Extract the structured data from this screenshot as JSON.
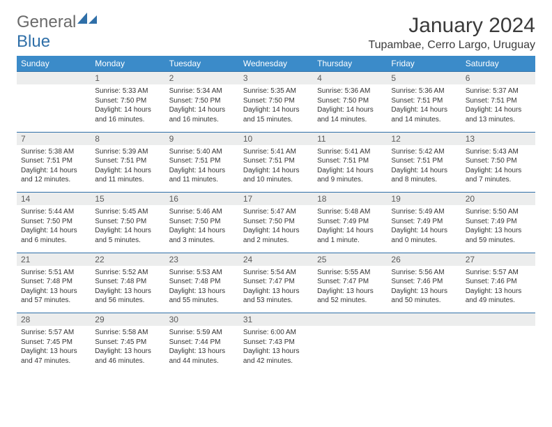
{
  "logo": {
    "text1": "General",
    "text2": "Blue"
  },
  "title": "January 2024",
  "location": "Tupambae, Cerro Largo, Uruguay",
  "colors": {
    "header_bg": "#3b8bc9",
    "header_text": "#ffffff",
    "daynum_bg": "#eceded",
    "rule": "#2f6fa8",
    "logo_gray": "#6a6a6a",
    "logo_blue": "#2f6fa8"
  },
  "weekdays": [
    "Sunday",
    "Monday",
    "Tuesday",
    "Wednesday",
    "Thursday",
    "Friday",
    "Saturday"
  ],
  "weeks": [
    [
      null,
      {
        "n": "1",
        "sr": "Sunrise: 5:33 AM",
        "ss": "Sunset: 7:50 PM",
        "dl": "Daylight: 14 hours and 16 minutes."
      },
      {
        "n": "2",
        "sr": "Sunrise: 5:34 AM",
        "ss": "Sunset: 7:50 PM",
        "dl": "Daylight: 14 hours and 16 minutes."
      },
      {
        "n": "3",
        "sr": "Sunrise: 5:35 AM",
        "ss": "Sunset: 7:50 PM",
        "dl": "Daylight: 14 hours and 15 minutes."
      },
      {
        "n": "4",
        "sr": "Sunrise: 5:36 AM",
        "ss": "Sunset: 7:50 PM",
        "dl": "Daylight: 14 hours and 14 minutes."
      },
      {
        "n": "5",
        "sr": "Sunrise: 5:36 AM",
        "ss": "Sunset: 7:51 PM",
        "dl": "Daylight: 14 hours and 14 minutes."
      },
      {
        "n": "6",
        "sr": "Sunrise: 5:37 AM",
        "ss": "Sunset: 7:51 PM",
        "dl": "Daylight: 14 hours and 13 minutes."
      }
    ],
    [
      {
        "n": "7",
        "sr": "Sunrise: 5:38 AM",
        "ss": "Sunset: 7:51 PM",
        "dl": "Daylight: 14 hours and 12 minutes."
      },
      {
        "n": "8",
        "sr": "Sunrise: 5:39 AM",
        "ss": "Sunset: 7:51 PM",
        "dl": "Daylight: 14 hours and 11 minutes."
      },
      {
        "n": "9",
        "sr": "Sunrise: 5:40 AM",
        "ss": "Sunset: 7:51 PM",
        "dl": "Daylight: 14 hours and 11 minutes."
      },
      {
        "n": "10",
        "sr": "Sunrise: 5:41 AM",
        "ss": "Sunset: 7:51 PM",
        "dl": "Daylight: 14 hours and 10 minutes."
      },
      {
        "n": "11",
        "sr": "Sunrise: 5:41 AM",
        "ss": "Sunset: 7:51 PM",
        "dl": "Daylight: 14 hours and 9 minutes."
      },
      {
        "n": "12",
        "sr": "Sunrise: 5:42 AM",
        "ss": "Sunset: 7:51 PM",
        "dl": "Daylight: 14 hours and 8 minutes."
      },
      {
        "n": "13",
        "sr": "Sunrise: 5:43 AM",
        "ss": "Sunset: 7:50 PM",
        "dl": "Daylight: 14 hours and 7 minutes."
      }
    ],
    [
      {
        "n": "14",
        "sr": "Sunrise: 5:44 AM",
        "ss": "Sunset: 7:50 PM",
        "dl": "Daylight: 14 hours and 6 minutes."
      },
      {
        "n": "15",
        "sr": "Sunrise: 5:45 AM",
        "ss": "Sunset: 7:50 PM",
        "dl": "Daylight: 14 hours and 5 minutes."
      },
      {
        "n": "16",
        "sr": "Sunrise: 5:46 AM",
        "ss": "Sunset: 7:50 PM",
        "dl": "Daylight: 14 hours and 3 minutes."
      },
      {
        "n": "17",
        "sr": "Sunrise: 5:47 AM",
        "ss": "Sunset: 7:50 PM",
        "dl": "Daylight: 14 hours and 2 minutes."
      },
      {
        "n": "18",
        "sr": "Sunrise: 5:48 AM",
        "ss": "Sunset: 7:49 PM",
        "dl": "Daylight: 14 hours and 1 minute."
      },
      {
        "n": "19",
        "sr": "Sunrise: 5:49 AM",
        "ss": "Sunset: 7:49 PM",
        "dl": "Daylight: 14 hours and 0 minutes."
      },
      {
        "n": "20",
        "sr": "Sunrise: 5:50 AM",
        "ss": "Sunset: 7:49 PM",
        "dl": "Daylight: 13 hours and 59 minutes."
      }
    ],
    [
      {
        "n": "21",
        "sr": "Sunrise: 5:51 AM",
        "ss": "Sunset: 7:48 PM",
        "dl": "Daylight: 13 hours and 57 minutes."
      },
      {
        "n": "22",
        "sr": "Sunrise: 5:52 AM",
        "ss": "Sunset: 7:48 PM",
        "dl": "Daylight: 13 hours and 56 minutes."
      },
      {
        "n": "23",
        "sr": "Sunrise: 5:53 AM",
        "ss": "Sunset: 7:48 PM",
        "dl": "Daylight: 13 hours and 55 minutes."
      },
      {
        "n": "24",
        "sr": "Sunrise: 5:54 AM",
        "ss": "Sunset: 7:47 PM",
        "dl": "Daylight: 13 hours and 53 minutes."
      },
      {
        "n": "25",
        "sr": "Sunrise: 5:55 AM",
        "ss": "Sunset: 7:47 PM",
        "dl": "Daylight: 13 hours and 52 minutes."
      },
      {
        "n": "26",
        "sr": "Sunrise: 5:56 AM",
        "ss": "Sunset: 7:46 PM",
        "dl": "Daylight: 13 hours and 50 minutes."
      },
      {
        "n": "27",
        "sr": "Sunrise: 5:57 AM",
        "ss": "Sunset: 7:46 PM",
        "dl": "Daylight: 13 hours and 49 minutes."
      }
    ],
    [
      {
        "n": "28",
        "sr": "Sunrise: 5:57 AM",
        "ss": "Sunset: 7:45 PM",
        "dl": "Daylight: 13 hours and 47 minutes."
      },
      {
        "n": "29",
        "sr": "Sunrise: 5:58 AM",
        "ss": "Sunset: 7:45 PM",
        "dl": "Daylight: 13 hours and 46 minutes."
      },
      {
        "n": "30",
        "sr": "Sunrise: 5:59 AM",
        "ss": "Sunset: 7:44 PM",
        "dl": "Daylight: 13 hours and 44 minutes."
      },
      {
        "n": "31",
        "sr": "Sunrise: 6:00 AM",
        "ss": "Sunset: 7:43 PM",
        "dl": "Daylight: 13 hours and 42 minutes."
      },
      null,
      null,
      null
    ]
  ]
}
